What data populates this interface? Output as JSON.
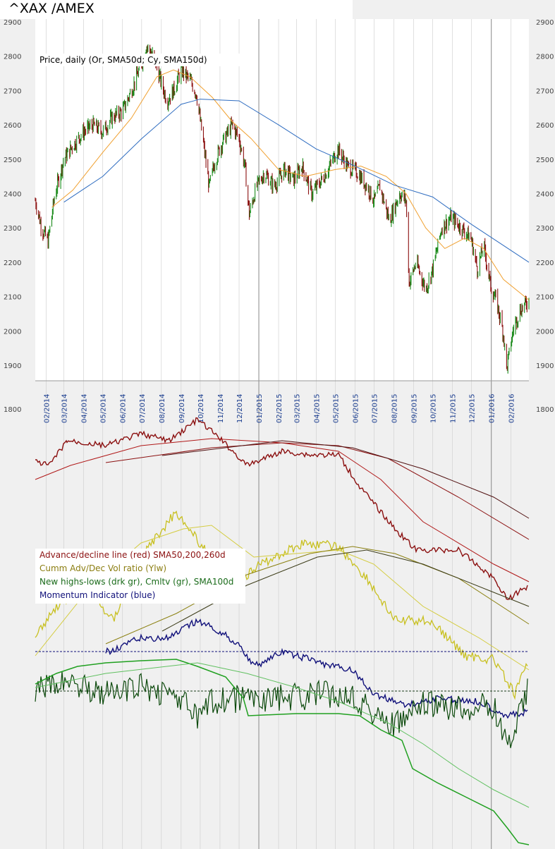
{
  "header": {
    "title": "^XAX /AMEX"
  },
  "price_panel": {
    "legend": "Price, daily (Or, SMA50d; Cy, SMA150d)",
    "y_ticks": [
      2900,
      2800,
      2700,
      2600,
      2500,
      2400,
      2300,
      2200,
      2100,
      2000,
      1900
    ],
    "colors": {
      "price_up": "#1a8a1a",
      "price_down": "#8b1010",
      "sma50": "#f0a030",
      "sma50_late": "#a0522d",
      "sma150": "#2e6cc0"
    }
  },
  "x_axis": {
    "labels": [
      "02/2014",
      "03/2014",
      "04/2014",
      "05/2014",
      "06/2014",
      "07/2014",
      "08/2014",
      "09/2014",
      "10/2014",
      "11/2014",
      "12/2014",
      "01/2015",
      "02/2015",
      "03/2015",
      "04/2015",
      "05/2015",
      "06/2015",
      "07/2015",
      "08/2015",
      "09/2015",
      "10/2015",
      "11/2015",
      "12/2015",
      "01/2016",
      "02/2016"
    ],
    "bottom_left_label": "1800",
    "bottom_right_label": "1800"
  },
  "indicator_panel": {
    "legend": [
      {
        "text": "Advance/decline line (red) SMA50,200,260d",
        "color": "#8b1010"
      },
      {
        "text": "Cumm Adv/Dec Vol ratio (Ylw)",
        "color": "#8b7d10"
      },
      {
        "text": "New highs-lows (drk gr), Cmltv (gr), SMA100d",
        "color": "#1a6b1a"
      },
      {
        "text": "Momentum Indicator (blue)",
        "color": "#10107a"
      }
    ]
  },
  "chart_data": {
    "type": "line",
    "title": "^XAX /AMEX",
    "y_range": [
      1860,
      2910
    ],
    "x_range": [
      "2014-01-15",
      "2016-02-29"
    ],
    "series": [
      {
        "name": "Price",
        "x": [
          "2014-01-15",
          "2014-01-25",
          "2014-02-04",
          "2014-02-15",
          "2014-03-01",
          "2014-03-15",
          "2014-04-01",
          "2014-04-15",
          "2014-05-01",
          "2014-05-15",
          "2014-06-01",
          "2014-06-15",
          "2014-07-01",
          "2014-07-08",
          "2014-07-20",
          "2014-08-01",
          "2014-08-10",
          "2014-08-20",
          "2014-09-01",
          "2014-09-15",
          "2014-09-25",
          "2014-10-05",
          "2014-10-15",
          "2014-10-25",
          "2014-11-05",
          "2014-11-20",
          "2014-12-01",
          "2014-12-10",
          "2014-12-17",
          "2014-12-28",
          "2015-01-10",
          "2015-01-25",
          "2015-02-10",
          "2015-02-25",
          "2015-03-10",
          "2015-03-25",
          "2015-04-10",
          "2015-04-25",
          "2015-05-05",
          "2015-05-20",
          "2015-06-05",
          "2015-06-20",
          "2015-07-01",
          "2015-07-10",
          "2015-07-25",
          "2015-08-10",
          "2015-08-20",
          "2015-08-25",
          "2015-09-05",
          "2015-09-20",
          "2015-10-01",
          "2015-10-15",
          "2015-10-30",
          "2015-11-15",
          "2015-11-30",
          "2015-12-10",
          "2015-12-20",
          "2015-12-31",
          "2016-01-10",
          "2016-01-20",
          "2016-01-25",
          "2016-02-05",
          "2016-02-15",
          "2016-02-29"
        ],
        "values": [
          2380,
          2300,
          2260,
          2400,
          2500,
          2540,
          2580,
          2600,
          2580,
          2620,
          2640,
          2700,
          2780,
          2830,
          2800,
          2720,
          2670,
          2700,
          2760,
          2730,
          2690,
          2560,
          2420,
          2500,
          2550,
          2600,
          2560,
          2480,
          2340,
          2420,
          2460,
          2420,
          2470,
          2440,
          2480,
          2400,
          2440,
          2490,
          2530,
          2480,
          2460,
          2420,
          2380,
          2420,
          2320,
          2400,
          2380,
          2140,
          2200,
          2120,
          2180,
          2300,
          2330,
          2300,
          2270,
          2180,
          2250,
          2130,
          2080,
          1990,
          1890,
          2010,
          2060,
          2090
        ]
      },
      {
        "name": "SMA50d",
        "x": [
          "2014-02-10",
          "2014-03-15",
          "2014-05-01",
          "2014-06-15",
          "2014-07-25",
          "2014-08-20",
          "2014-09-15",
          "2014-10-20",
          "2014-11-20",
          "2014-12-20",
          "2015-02-01",
          "2015-03-15",
          "2015-05-01",
          "2015-06-10",
          "2015-07-20",
          "2015-08-20",
          "2015-09-20",
          "2015-10-20",
          "2015-11-20",
          "2015-12-20",
          "2016-01-20",
          "2016-02-29"
        ],
        "values": [
          2360,
          2410,
          2520,
          2620,
          2740,
          2760,
          2740,
          2680,
          2610,
          2560,
          2470,
          2450,
          2470,
          2480,
          2450,
          2400,
          2300,
          2240,
          2270,
          2240,
          2150,
          2090
        ]
      },
      {
        "name": "SMA150d",
        "x": [
          "2014-03-01",
          "2014-05-01",
          "2014-07-01",
          "2014-09-01",
          "2014-10-01",
          "2014-12-01",
          "2015-02-01",
          "2015-04-01",
          "2015-06-01",
          "2015-08-01",
          "2015-10-01",
          "2015-12-01",
          "2016-02-29"
        ],
        "values": [
          2375,
          2450,
          2560,
          2660,
          2675,
          2670,
          2600,
          2530,
          2480,
          2425,
          2390,
          2310,
          2200
        ]
      }
    ]
  }
}
